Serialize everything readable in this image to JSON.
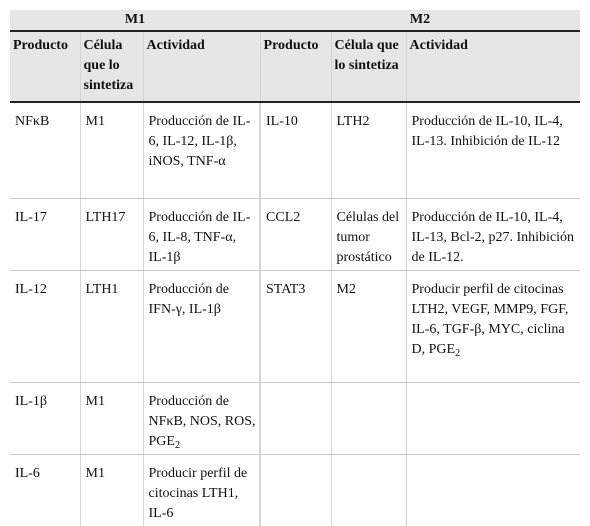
{
  "table": {
    "groups": {
      "m1": "M1",
      "m2": "M2"
    },
    "headers": {
      "producto": "Producto",
      "celula": "Célula que lo sintetiza",
      "actividad": "Actividad"
    },
    "rows": [
      {
        "m1_producto": "NFκB",
        "m1_celula": "M1",
        "m1_actividad": "Producción de IL-6, IL-12, IL-1β, iNOS, TNF-α",
        "m2_producto": "IL-10",
        "m2_celula": "LTH2",
        "m2_actividad": "Producción de IL-10, IL-4, IL-13. Inhibición de IL-12"
      },
      {
        "m1_producto": "IL-17",
        "m1_celula": "LTH17",
        "m1_actividad": "Producción de IL-6, IL-8, TNF-α, IL-1β",
        "m2_producto": "CCL2",
        "m2_celula": "Células del tumor prostático",
        "m2_actividad": "Producción de IL-10, IL-4, IL-13, Bcl-2, p27. Inhibición de IL-12."
      },
      {
        "m1_producto": "IL-12",
        "m1_celula": "LTH1",
        "m1_actividad": "Producción de IFN-γ, IL-1β",
        "m2_producto": "STAT3",
        "m2_celula": "M2",
        "m2_actividad": "Producir perfil de citocinas LTH2, VEGF, MMP9, FGF, IL-6, TGF-β, MYC, ciclina D, PGE",
        "m2_actividad_sub": "2"
      },
      {
        "m1_producto": "IL-1β",
        "m1_celula": "M1",
        "m1_actividad": "Producción de NFκB, NOS, ROS, PGE",
        "m1_actividad_sub": "2"
      },
      {
        "m1_producto": "IL-6",
        "m1_celula": "M1",
        "m1_actividad": "Producir perfil de citocinas LTH1, IL-6"
      }
    ]
  }
}
